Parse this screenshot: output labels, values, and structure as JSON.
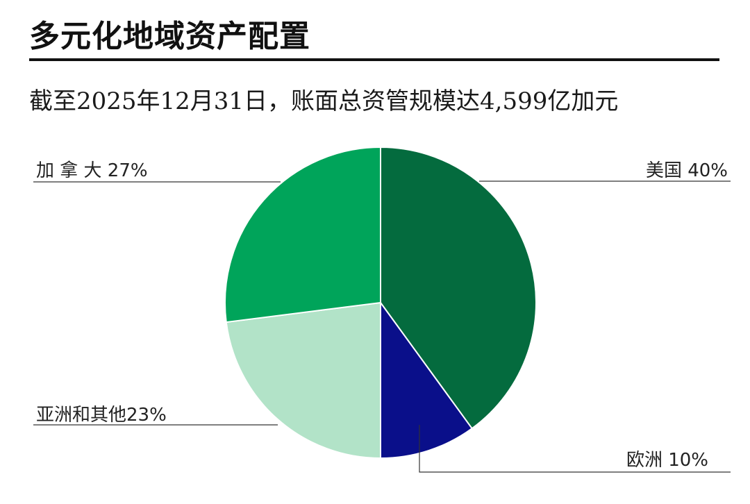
{
  "title": "多元化地域资产配置",
  "subtitle": "截至2025年12月31日，账面总资管规模达4,599亿加元",
  "chart_data": {
    "type": "pie",
    "slices": [
      {
        "label": "美国  40%",
        "name": "美国",
        "value": 40,
        "color": "#046b3e"
      },
      {
        "label": "欧洲 10%",
        "name": "欧洲",
        "value": 10,
        "color": "#0a0f8a"
      },
      {
        "label": "亚洲和其他23%",
        "name": "亚洲和其他",
        "value": 23,
        "color": "#b2e3c8"
      },
      {
        "label": "加 拿 大 27%",
        "name": "加拿大",
        "value": 27,
        "color": "#00a45a"
      }
    ],
    "start": "12 o'clock",
    "direction": "clockwise"
  }
}
